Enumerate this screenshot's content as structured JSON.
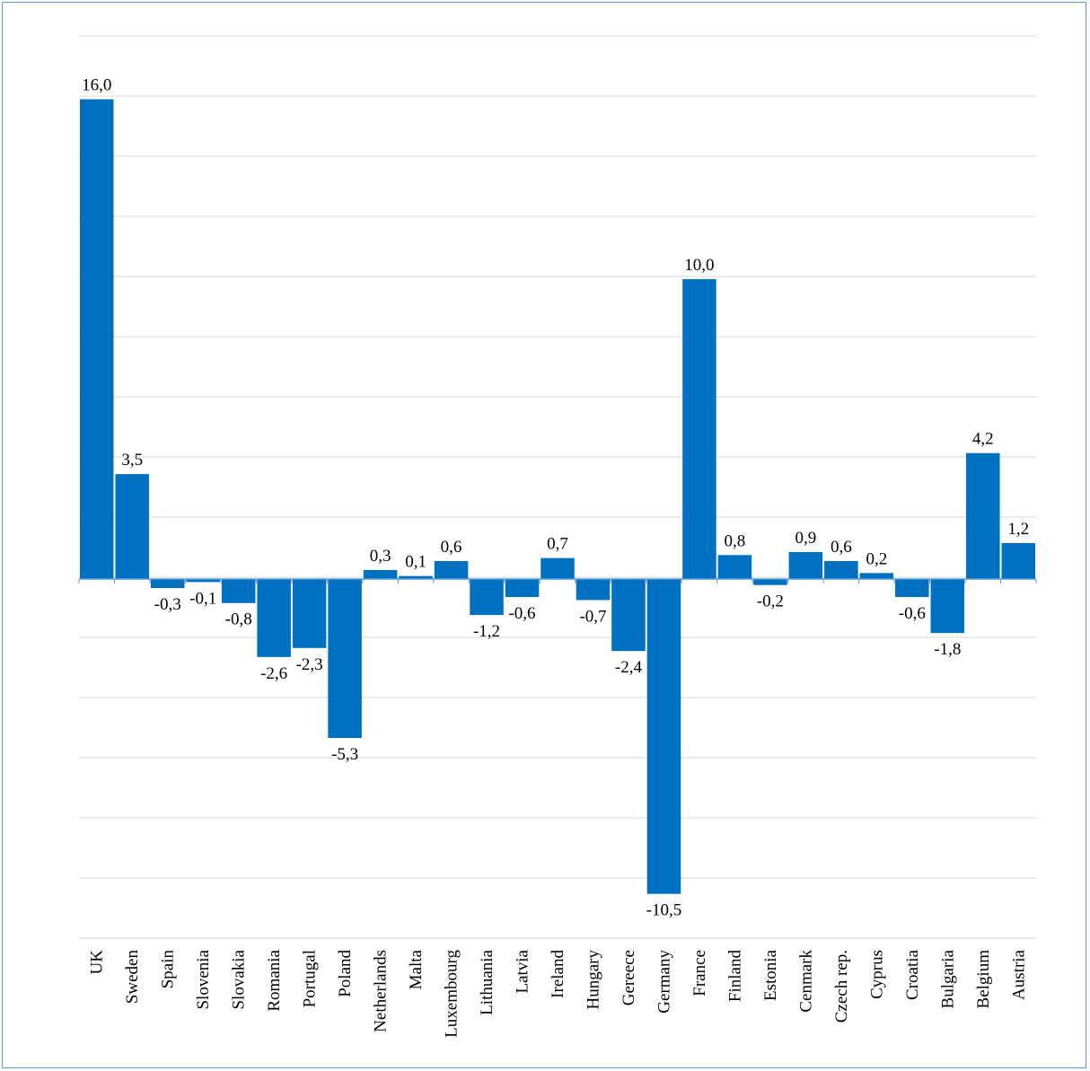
{
  "chart_data": {
    "type": "bar",
    "title": "",
    "xlabel": "",
    "ylabel": "",
    "ylim": [
      -12.5,
      18.0
    ],
    "grid": true,
    "bar_color": "#0070c0",
    "grid_color": "#d9d9d9",
    "axis_color": "#5b9bd5",
    "categories": [
      "UK",
      "Sweden",
      "Spain",
      "Slovenia",
      "Slovakia",
      "Romania",
      "Portugal",
      "Poland",
      "Netherlands",
      "Malta",
      "Luxembourg",
      "Lithuania",
      "Latvia",
      "Ireland",
      "Hungary",
      "Gereece",
      "Germany",
      "France",
      "Finland",
      "Estonia",
      "Cenmark",
      "Czech rep.",
      "Cyprus",
      "Croatia",
      "Bulgaria",
      "Belgium",
      "Austria"
    ],
    "values": [
      16.0,
      3.5,
      -0.3,
      -0.1,
      -0.8,
      -2.6,
      -2.3,
      -5.3,
      0.3,
      0.1,
      0.6,
      -1.2,
      -0.6,
      0.7,
      -0.7,
      -2.4,
      -10.5,
      10.0,
      0.8,
      -0.2,
      0.9,
      0.6,
      0.2,
      -0.6,
      -1.8,
      4.2,
      1.2
    ],
    "labels": [
      "16,0",
      "3,5",
      "-0,3",
      "-0,1",
      "-0,8",
      "-2,6",
      "-2,3",
      "-5,3",
      "0,3",
      "0,1",
      "0,6",
      "-1,2",
      "-0,6",
      "0,7",
      "-0,7",
      "-2,4",
      "-10,5",
      "10,0",
      "0,8",
      "-0,2",
      "0,9",
      "0,6",
      "0,2",
      "-0,6",
      "-1,8",
      "4,2",
      "1,2"
    ]
  }
}
